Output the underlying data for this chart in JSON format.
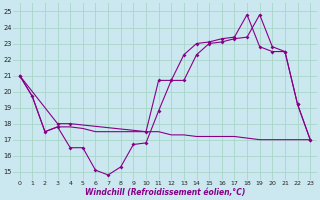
{
  "background_color": "#cbe8f0",
  "grid_color": "#a8d5c8",
  "line_color": "#880088",
  "xlim": [
    -0.5,
    23.5
  ],
  "ylim": [
    14.5,
    25.5
  ],
  "yticks": [
    15,
    16,
    17,
    18,
    19,
    20,
    21,
    22,
    23,
    24,
    25
  ],
  "xticks": [
    0,
    1,
    2,
    3,
    4,
    5,
    6,
    7,
    8,
    9,
    10,
    11,
    12,
    13,
    14,
    15,
    16,
    17,
    18,
    19,
    20,
    21,
    22,
    23
  ],
  "xlabel": "Windchill (Refroidissement éolien,°C)",
  "s1_x": [
    0,
    1,
    2,
    3,
    4,
    5,
    6,
    7,
    8,
    9,
    10,
    11,
    12,
    13,
    14,
    15,
    16,
    17,
    18,
    19,
    20,
    21,
    22,
    23
  ],
  "s1_y": [
    21.0,
    19.7,
    17.5,
    17.8,
    16.5,
    16.5,
    15.1,
    14.8,
    15.3,
    16.7,
    16.8,
    18.8,
    20.7,
    20.7,
    22.3,
    23.0,
    23.1,
    23.3,
    23.4,
    24.8,
    22.8,
    22.5,
    19.2,
    17.0
  ],
  "s2_x": [
    0,
    1,
    2,
    3,
    4,
    5,
    6,
    7,
    8,
    9,
    10,
    11,
    12,
    13,
    14,
    15,
    16,
    17,
    18,
    19,
    20,
    21,
    22,
    23
  ],
  "s2_y": [
    21.0,
    19.7,
    17.5,
    17.8,
    17.8,
    17.7,
    17.5,
    17.5,
    17.5,
    17.5,
    17.5,
    17.5,
    17.3,
    17.3,
    17.2,
    17.2,
    17.2,
    17.2,
    17.1,
    17.0,
    17.0,
    17.0,
    17.0,
    17.0
  ],
  "s3_x": [
    0,
    3,
    4,
    10,
    11,
    12,
    13,
    14,
    15,
    16,
    17,
    18,
    19,
    20,
    21,
    22,
    23
  ],
  "s3_y": [
    21.0,
    18.0,
    18.0,
    17.5,
    20.7,
    20.7,
    22.3,
    23.0,
    23.1,
    23.3,
    23.4,
    24.8,
    22.8,
    22.5,
    22.5,
    19.2,
    17.0
  ]
}
